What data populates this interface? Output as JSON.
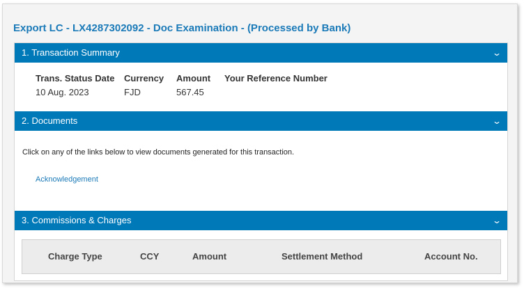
{
  "title": "Export LC - LX4287302092 - Doc Examination - (Processed by Bank)",
  "sections": [
    {
      "label": "1. Transaction Summary"
    },
    {
      "label": "2. Documents"
    },
    {
      "label": "3. Commissions & Charges"
    }
  ],
  "summary": {
    "headers": [
      "Trans. Status Date",
      "Currency",
      "Amount",
      "Your Reference Number"
    ],
    "values": [
      "10 Aug. 2023",
      "FJD",
      "567.45",
      ""
    ]
  },
  "documents": {
    "instruction": "Click on any of the links below to view documents generated for this transaction.",
    "links": [
      "Acknowledgement"
    ]
  },
  "charges": {
    "headers": [
      "Charge Type",
      "CCY",
      "Amount",
      "Settlement Method",
      "Account No."
    ]
  },
  "icons": {
    "collapse": "chevron-down-icon"
  },
  "colors": {
    "accent": "#0079b9",
    "title": "#1b7ab8"
  }
}
